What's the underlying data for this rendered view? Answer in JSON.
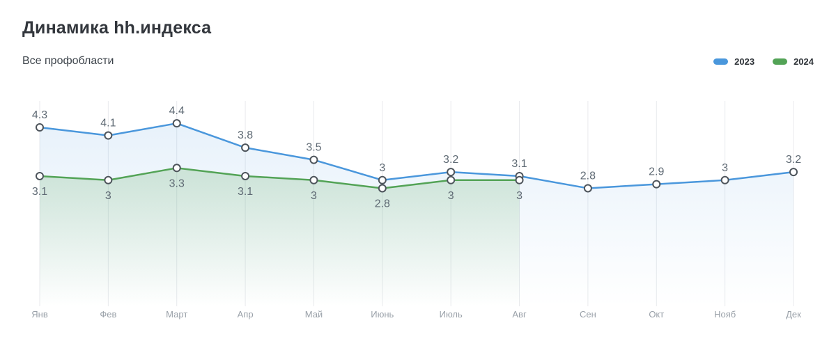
{
  "header": {
    "title": "Динамика hh.индекса",
    "subtitle": "Все профобласти"
  },
  "legend": {
    "items": [
      {
        "label": "2023",
        "color": "#4a97dc"
      },
      {
        "label": "2024",
        "color": "#53a356"
      }
    ]
  },
  "chart_data": {
    "type": "line",
    "title": "Динамика hh.индекса",
    "subtitle": "Все профобласти",
    "categories": [
      "Янв",
      "Фев",
      "Март",
      "Апр",
      "Май",
      "Июнь",
      "Июль",
      "Авг",
      "Сен",
      "Окт",
      "Нояб",
      "Дек"
    ],
    "series": [
      {
        "name": "2023",
        "color": "#4a97dc",
        "fill_opacity": 0.13,
        "label_position": "above",
        "values": [
          4.3,
          4.1,
          4.4,
          3.8,
          3.5,
          3,
          3.2,
          3.1,
          2.8,
          2.9,
          3,
          3.2
        ]
      },
      {
        "name": "2024",
        "color": "#53a356",
        "fill_opacity": 0.22,
        "label_position": "below",
        "values": [
          3.1,
          3,
          3.3,
          3.1,
          3,
          2.8,
          3,
          3,
          null,
          null,
          null,
          null
        ]
      }
    ],
    "xlabel": "",
    "ylabel": "",
    "grid": "vertical-only",
    "area_fill": true,
    "markers": "open-circle",
    "value_labels": true,
    "legend_position": "top-right",
    "colors": {
      "grid": "#e8eaed",
      "marker_stroke": "#4d545b",
      "marker_fill": "#ffffff",
      "value_label": "#5f6a74",
      "axis_label": "#9aa1a9",
      "background": "#ffffff"
    }
  }
}
